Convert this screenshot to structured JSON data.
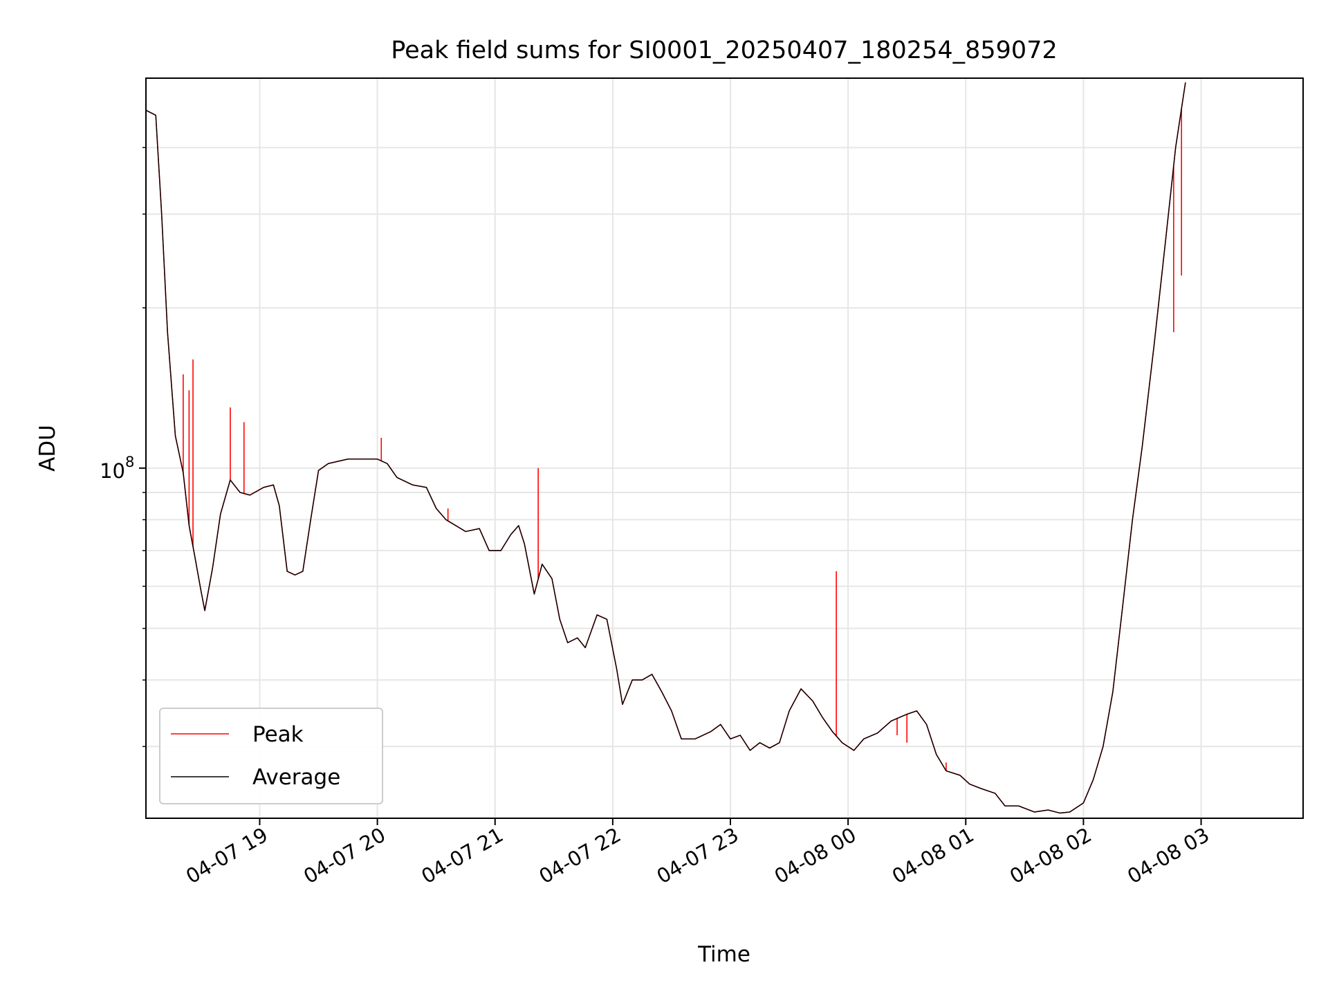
{
  "chart_data": {
    "type": "line",
    "title": "Peak field sums for SI0001_20250407_180254_859072",
    "xlabel": "Time",
    "ylabel": "ADU",
    "y_scale": "log",
    "ylim": [
      22000000,
      540000000
    ],
    "xlim": [
      "2025-04-07 18:02",
      "2025-04-08 03:52"
    ],
    "grid": true,
    "legend_position": "lower-left",
    "x_ticks": [
      {
        "value": "2025-04-07 19:00",
        "label": "04-07 19"
      },
      {
        "value": "2025-04-07 20:00",
        "label": "04-07 20"
      },
      {
        "value": "2025-04-07 21:00",
        "label": "04-07 21"
      },
      {
        "value": "2025-04-07 22:00",
        "label": "04-07 22"
      },
      {
        "value": "2025-04-07 23:00",
        "label": "04-07 23"
      },
      {
        "value": "2025-04-08 00:00",
        "label": "04-08 00"
      },
      {
        "value": "2025-04-08 01:00",
        "label": "04-08 01"
      },
      {
        "value": "2025-04-08 02:00",
        "label": "04-08 02"
      },
      {
        "value": "2025-04-08 03:00",
        "label": "04-08 03"
      }
    ],
    "y_major_ticks": [
      {
        "value": 100000000,
        "base": "10",
        "exponent": "8"
      }
    ],
    "y_minor_ticks": [
      30000000,
      40000000,
      50000000,
      60000000,
      70000000,
      80000000,
      90000000,
      200000000,
      300000000,
      400000000
    ],
    "series": [
      {
        "name": "Average",
        "color": "#000000",
        "points": [
          [
            "2025-04-07 18:02",
            470000000
          ],
          [
            "2025-04-07 18:07",
            460000000
          ],
          [
            "2025-04-07 18:10",
            300000000
          ],
          [
            "2025-04-07 18:13",
            180000000
          ],
          [
            "2025-04-07 18:17",
            115000000
          ],
          [
            "2025-04-07 18:21",
            98000000
          ],
          [
            "2025-04-07 18:24",
            78000000
          ],
          [
            "2025-04-07 18:27",
            68000000
          ],
          [
            "2025-04-07 18:30",
            59000000
          ],
          [
            "2025-04-07 18:32",
            54000000
          ],
          [
            "2025-04-07 18:36",
            65000000
          ],
          [
            "2025-04-07 18:40",
            82000000
          ],
          [
            "2025-04-07 18:45",
            95000000
          ],
          [
            "2025-04-07 18:50",
            90000000
          ],
          [
            "2025-04-07 18:55",
            89000000
          ],
          [
            "2025-04-07 19:02",
            92000000
          ],
          [
            "2025-04-07 19:07",
            93000000
          ],
          [
            "2025-04-07 19:10",
            85000000
          ],
          [
            "2025-04-07 19:14",
            64000000
          ],
          [
            "2025-04-07 19:18",
            63000000
          ],
          [
            "2025-04-07 19:22",
            64000000
          ],
          [
            "2025-04-07 19:26",
            80000000
          ],
          [
            "2025-04-07 19:30",
            99000000
          ],
          [
            "2025-04-07 19:35",
            102000000
          ],
          [
            "2025-04-07 19:45",
            104000000
          ],
          [
            "2025-04-07 20:00",
            104000000
          ],
          [
            "2025-04-07 20:05",
            102000000
          ],
          [
            "2025-04-07 20:10",
            96000000
          ],
          [
            "2025-04-07 20:18",
            93000000
          ],
          [
            "2025-04-07 20:25",
            92000000
          ],
          [
            "2025-04-07 20:30",
            84000000
          ],
          [
            "2025-04-07 20:35",
            80000000
          ],
          [
            "2025-04-07 20:40",
            78000000
          ],
          [
            "2025-04-07 20:45",
            76000000
          ],
          [
            "2025-04-07 20:52",
            77000000
          ],
          [
            "2025-04-07 20:57",
            70000000
          ],
          [
            "2025-04-07 21:03",
            70000000
          ],
          [
            "2025-04-07 21:08",
            75000000
          ],
          [
            "2025-04-07 21:12",
            78000000
          ],
          [
            "2025-04-07 21:15",
            72000000
          ],
          [
            "2025-04-07 21:20",
            58000000
          ],
          [
            "2025-04-07 21:24",
            66000000
          ],
          [
            "2025-04-07 21:29",
            62000000
          ],
          [
            "2025-04-07 21:33",
            52000000
          ],
          [
            "2025-04-07 21:37",
            47000000
          ],
          [
            "2025-04-07 21:42",
            48000000
          ],
          [
            "2025-04-07 21:46",
            46000000
          ],
          [
            "2025-04-07 21:52",
            53000000
          ],
          [
            "2025-04-07 21:57",
            52000000
          ],
          [
            "2025-04-07 22:02",
            42000000
          ],
          [
            "2025-04-07 22:05",
            36000000
          ],
          [
            "2025-04-07 22:10",
            40000000
          ],
          [
            "2025-04-07 22:15",
            40000000
          ],
          [
            "2025-04-07 22:20",
            41000000
          ],
          [
            "2025-04-07 22:25",
            38000000
          ],
          [
            "2025-04-07 22:30",
            35000000
          ],
          [
            "2025-04-07 22:35",
            31000000
          ],
          [
            "2025-04-07 22:42",
            31000000
          ],
          [
            "2025-04-07 22:50",
            32000000
          ],
          [
            "2025-04-07 22:55",
            33000000
          ],
          [
            "2025-04-07 23:00",
            31000000
          ],
          [
            "2025-04-07 23:05",
            31500000
          ],
          [
            "2025-04-07 23:10",
            29500000
          ],
          [
            "2025-04-07 23:15",
            30500000
          ],
          [
            "2025-04-07 23:20",
            29800000
          ],
          [
            "2025-04-07 23:25",
            30500000
          ],
          [
            "2025-04-07 23:30",
            35000000
          ],
          [
            "2025-04-07 23:36",
            38500000
          ],
          [
            "2025-04-07 23:42",
            36500000
          ],
          [
            "2025-04-07 23:47",
            34000000
          ],
          [
            "2025-04-07 23:52",
            32000000
          ],
          [
            "2025-04-07 23:57",
            30500000
          ],
          [
            "2025-04-08 00:03",
            29500000
          ],
          [
            "2025-04-08 00:08",
            31000000
          ],
          [
            "2025-04-08 00:15",
            31800000
          ],
          [
            "2025-04-08 00:22",
            33500000
          ],
          [
            "2025-04-08 00:30",
            34500000
          ],
          [
            "2025-04-08 00:35",
            35000000
          ],
          [
            "2025-04-08 00:40",
            33000000
          ],
          [
            "2025-04-08 00:45",
            29000000
          ],
          [
            "2025-04-08 00:50",
            27000000
          ],
          [
            "2025-04-08 00:57",
            26500000
          ],
          [
            "2025-04-08 01:02",
            25500000
          ],
          [
            "2025-04-08 01:08",
            25000000
          ],
          [
            "2025-04-08 01:15",
            24500000
          ],
          [
            "2025-04-08 01:20",
            23200000
          ],
          [
            "2025-04-08 01:27",
            23200000
          ],
          [
            "2025-04-08 01:35",
            22600000
          ],
          [
            "2025-04-08 01:42",
            22800000
          ],
          [
            "2025-04-08 01:48",
            22500000
          ],
          [
            "2025-04-08 01:53",
            22600000
          ],
          [
            "2025-04-08 02:00",
            23500000
          ],
          [
            "2025-04-08 02:05",
            26000000
          ],
          [
            "2025-04-08 02:10",
            30000000
          ],
          [
            "2025-04-08 02:15",
            38000000
          ],
          [
            "2025-04-08 02:20",
            55000000
          ],
          [
            "2025-04-08 02:25",
            80000000
          ],
          [
            "2025-04-08 02:30",
            110000000
          ],
          [
            "2025-04-08 02:36",
            170000000
          ],
          [
            "2025-04-08 02:42",
            270000000
          ],
          [
            "2025-04-08 02:47",
            400000000
          ],
          [
            "2025-04-08 02:52",
            530000000
          ]
        ]
      },
      {
        "name": "Peak",
        "color": "#ff0000",
        "spikes": [
          [
            "2025-04-07 18:21",
            150000000
          ],
          [
            "2025-04-07 18:24",
            140000000
          ],
          [
            "2025-04-07 18:26",
            160000000
          ],
          [
            "2025-04-07 18:45",
            130000000
          ],
          [
            "2025-04-07 18:52",
            122000000
          ],
          [
            "2025-04-07 20:02",
            114000000
          ],
          [
            "2025-04-07 20:36",
            84000000
          ],
          [
            "2025-04-07 21:22",
            100000000
          ],
          [
            "2025-04-07 23:54",
            64000000
          ],
          [
            "2025-04-08 00:25",
            31500000
          ],
          [
            "2025-04-08 00:30",
            30500000
          ],
          [
            "2025-04-08 00:50",
            28000000
          ],
          [
            "2025-04-08 02:46",
            180000000
          ],
          [
            "2025-04-08 02:50",
            230000000
          ]
        ]
      }
    ]
  }
}
